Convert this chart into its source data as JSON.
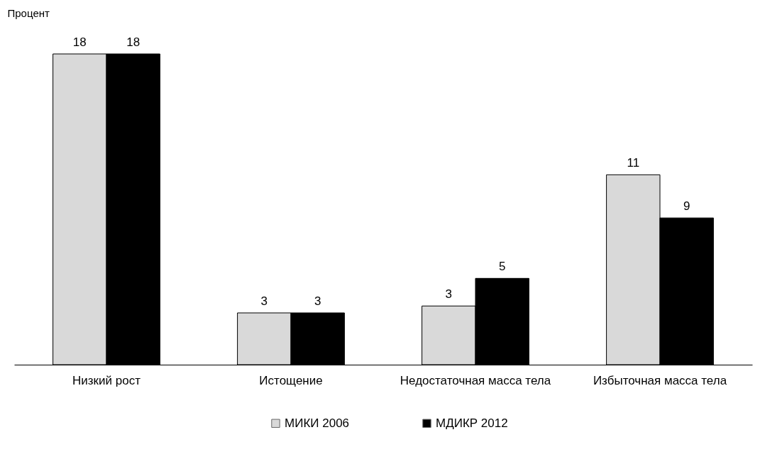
{
  "chart_data": {
    "type": "bar",
    "ylabel": "Процент",
    "categories": [
      "Низкий рост",
      "Истощение",
      "Недостаточная масса тела",
      "Избыточная масса тела"
    ],
    "series": [
      {
        "name": "МИКИ 2006",
        "color": "#d9d9d9",
        "values": [
          18,
          3,
          3.4,
          11
        ],
        "value_labels": [
          "18",
          "3",
          "3",
          "11"
        ]
      },
      {
        "name": "МДИКР 2012",
        "color": "#000000",
        "values": [
          18,
          3,
          5,
          8.5
        ],
        "value_labels": [
          "18",
          "3",
          "5",
          "9"
        ]
      }
    ],
    "legend": "bottom"
  }
}
